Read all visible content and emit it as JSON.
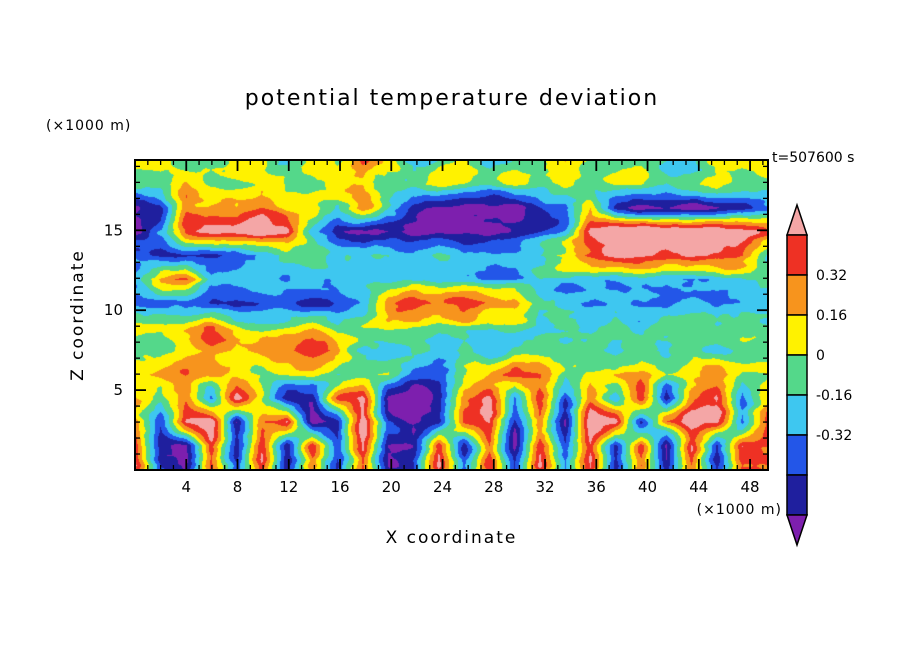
{
  "figure": {
    "title": "potential temperature deviation",
    "time_label": "t=507600 s",
    "x_axis": {
      "label": "X coordinate",
      "units": "(×1000 m)",
      "major_ticks": [
        4,
        8,
        12,
        16,
        20,
        24,
        28,
        32,
        36,
        40,
        44,
        48
      ],
      "minor_step": 1
    },
    "z_axis": {
      "label": "Z coordinate",
      "units": "(×1000 m)",
      "major_ticks": [
        5,
        10,
        15
      ],
      "minor_step": 1
    },
    "colorbar": {
      "labels": [
        "0.32",
        "0.16",
        "0",
        "-0.16",
        "-0.32"
      ]
    }
  },
  "chart_data": {
    "type": "heatmap",
    "title": "potential temperature deviation",
    "xlabel": "X coordinate",
    "ylabel": "Z coordinate",
    "x_units": "(×1000 m)",
    "z_units": "(×1000 m)",
    "time_annotation": "t=507600 s",
    "x_range": [
      0,
      49.4
    ],
    "z_range": [
      0,
      19.4
    ],
    "x_ticks": [
      4,
      8,
      12,
      16,
      20,
      24,
      28,
      32,
      36,
      40,
      44,
      48
    ],
    "z_ticks": [
      5,
      10,
      15
    ],
    "levels": [
      -0.64,
      -0.48,
      -0.32,
      -0.16,
      0,
      0.16,
      0.32,
      0.48
    ],
    "labeled_levels": [
      0.32,
      0.16,
      0,
      -0.16,
      -0.32
    ],
    "band_colors": [
      "#7d1fae",
      "#1f1f9e",
      "#2356e8",
      "#3ec7f0",
      "#54d88a",
      "#fff200",
      "#f7941d",
      "#ee3124",
      "#f4a6a6"
    ],
    "grid": {
      "note": "coarse estimate of the deviation field, rows top (z=19.4) to bottom (z=0), cols x=0..50",
      "values": [
        [
          -0.05,
          0.06,
          -0.18,
          -0.05,
          0.1,
          -0.05,
          -0.2,
          0.05,
          -0.05,
          0.35,
          0.1,
          -0.15,
          -0.05,
          0.08,
          -0.2,
          -0.05,
          0.05,
          0.3,
          -0.05,
          -0.15,
          0.05,
          -0.05,
          -0.2,
          0.05,
          -0.05,
          0.08
        ],
        [
          -0.1,
          -0.05,
          0.08,
          -0.2,
          -0.05,
          0.1,
          -0.05,
          -0.18,
          0.05,
          0.15,
          -0.05,
          -0.2,
          0.06,
          -0.05,
          -0.15,
          0.05,
          -0.05,
          0.12,
          -0.18,
          -0.05,
          0.06,
          -0.15,
          -0.05,
          0.05,
          -0.12,
          -0.05
        ],
        [
          -0.7,
          -0.55,
          0.3,
          0.25,
          0.1,
          0.3,
          0.15,
          0.25,
          -0.1,
          0.2,
          -0.3,
          -0.6,
          -0.75,
          -0.7,
          -0.6,
          -0.7,
          -0.55,
          -0.4,
          0.2,
          -0.5,
          -0.7,
          -0.65,
          -0.75,
          -0.6,
          -0.5,
          -0.3
        ],
        [
          -0.75,
          -0.4,
          0.35,
          0.45,
          0.6,
          0.65,
          0.5,
          -0.3,
          -0.65,
          -0.75,
          -0.7,
          -0.75,
          -0.65,
          -0.7,
          -0.75,
          -0.6,
          -0.5,
          -0.3,
          0.45,
          0.6,
          0.65,
          0.6,
          0.65,
          0.6,
          0.55,
          0.4
        ],
        [
          -0.3,
          -0.55,
          -0.6,
          -0.55,
          -0.5,
          -0.35,
          -0.2,
          -0.1,
          -0.25,
          -0.15,
          -0.05,
          -0.2,
          -0.1,
          -0.25,
          -0.15,
          -0.2,
          -0.1,
          0.1,
          0.35,
          0.55,
          0.6,
          0.55,
          0.6,
          0.5,
          0.35,
          -0.1
        ],
        [
          -0.2,
          0.3,
          0.35,
          -0.25,
          -0.3,
          -0.25,
          -0.3,
          -0.2,
          -0.25,
          -0.2,
          -0.25,
          -0.15,
          -0.25,
          -0.2,
          -0.3,
          -0.25,
          -0.2,
          -0.25,
          -0.3,
          -0.35,
          -0.25,
          -0.3,
          -0.35,
          -0.25,
          -0.3,
          -0.2
        ],
        [
          -0.4,
          -0.45,
          -0.55,
          -0.6,
          -0.55,
          -0.45,
          -0.4,
          -0.45,
          -0.4,
          -0.35,
          0.2,
          0.45,
          0.35,
          0.55,
          0.4,
          0.25,
          -0.2,
          -0.3,
          -0.35,
          -0.3,
          -0.35,
          -0.4,
          -0.3,
          -0.35,
          -0.3,
          -0.25
        ],
        [
          0.12,
          0.1,
          0.08,
          0.35,
          -0.05,
          -0.15,
          -0.05,
          0.05,
          -0.2,
          -0.05,
          0.08,
          -0.05,
          -0.18,
          -0.05,
          -0.15,
          -0.05,
          -0.2,
          -0.05,
          -0.15,
          -0.05,
          -0.2,
          -0.1,
          -0.05,
          -0.18,
          -0.05,
          -0.1
        ],
        [
          -0.05,
          -0.15,
          0.1,
          0.3,
          0.15,
          0.4,
          0.35,
          0.45,
          0.25,
          -0.1,
          -0.2,
          -0.05,
          -0.15,
          -0.05,
          -0.2,
          -0.05,
          -0.1,
          -0.2,
          -0.05,
          -0.15,
          -0.05,
          -0.2,
          -0.05,
          -0.15,
          -0.05,
          -0.05
        ],
        [
          0.05,
          0.2,
          0.25,
          0.2,
          0.05,
          -0.1,
          -0.05,
          0.08,
          -0.15,
          -0.05,
          0.05,
          -0.3,
          -0.4,
          -0.05,
          0.1,
          0.3,
          0.2,
          -0.1,
          -0.05,
          0.1,
          0.25,
          -0.05,
          0.15,
          0.3,
          -0.05,
          0.05
        ],
        [
          0.1,
          -0.2,
          0.3,
          -0.4,
          0.5,
          -0.1,
          -0.7,
          -0.6,
          0.4,
          0.6,
          -0.65,
          -0.75,
          -0.5,
          0.3,
          0.55,
          -0.3,
          0.4,
          -0.5,
          0.2,
          -0.4,
          0.5,
          -0.6,
          0.35,
          0.6,
          -0.3,
          0.2
        ],
        [
          0.3,
          -0.5,
          0.55,
          0.6,
          -0.6,
          0.3,
          0.6,
          -0.7,
          -0.55,
          0.65,
          -0.4,
          -0.7,
          -0.6,
          0.4,
          0.6,
          -0.5,
          0.3,
          -0.6,
          0.65,
          0.5,
          -0.55,
          0.3,
          0.6,
          0.55,
          -0.4,
          0.35
        ],
        [
          0.4,
          -0.6,
          -0.7,
          0.45,
          -0.55,
          0.5,
          -0.65,
          0.4,
          -0.5,
          0.45,
          -0.7,
          -0.6,
          0.5,
          -0.55,
          0.4,
          -0.65,
          0.45,
          -0.5,
          0.5,
          -0.6,
          0.4,
          -0.7,
          0.45,
          -0.55,
          0.5,
          0.4
        ],
        [
          0.35,
          -0.5,
          -0.6,
          0.4,
          -0.45,
          0.45,
          -0.55,
          0.35,
          -0.4,
          0.4,
          -0.6,
          -0.5,
          0.45,
          -0.45,
          0.35,
          -0.55,
          0.4,
          -0.4,
          0.45,
          -0.5,
          0.35,
          -0.6,
          0.4,
          -0.45,
          0.45,
          0.35
        ]
      ]
    },
    "render_hints": {
      "seed": 7,
      "noise_amplitude": 0.12,
      "legend_position": "right",
      "grid_lines": false
    }
  }
}
